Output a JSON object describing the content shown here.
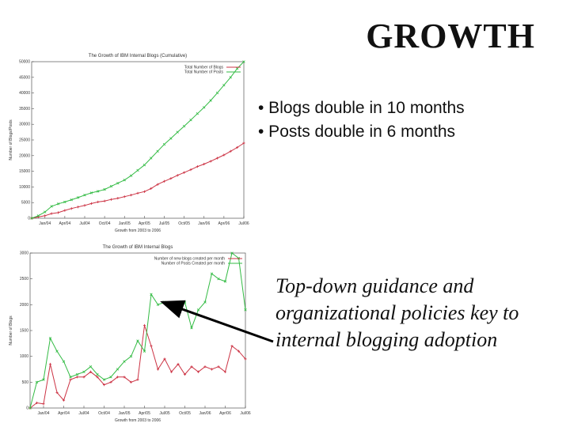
{
  "slide": {
    "title": "GROWTH",
    "bullets": [
      "• Blogs double in 10 months",
      "• Posts double in 6 months"
    ],
    "note": "Top-down guidance and organizational policies key to internal blogging adoption"
  },
  "colors": {
    "blogs": "#cc3344",
    "posts": "#33bb44",
    "arrow": "#000000"
  },
  "chart_data": [
    {
      "type": "line",
      "title": "The Growth of IBM Internal Blogs (Cumulative)",
      "xlabel": "Growth from 2003 to 2006",
      "ylabel": "Number of Blogs/Posts",
      "ylim": [
        0,
        50000
      ],
      "yticks": [
        0,
        5000,
        10000,
        15000,
        20000,
        25000,
        30000,
        35000,
        40000,
        45000,
        50000
      ],
      "xtick_labels": [
        "Jan/04",
        "Apr/04",
        "Jul/04",
        "Oct/04",
        "Jan/05",
        "Apr/05",
        "Jul/05",
        "Oct/05",
        "Jan/06",
        "Apr/06",
        "Jul/06"
      ],
      "legend_position": "top-right",
      "grid": false,
      "x": [
        "Nov/03",
        "Dec/03",
        "Jan/04",
        "Feb/04",
        "Mar/04",
        "Apr/04",
        "May/04",
        "Jun/04",
        "Jul/04",
        "Aug/04",
        "Sep/04",
        "Oct/04",
        "Nov/04",
        "Dec/04",
        "Jan/05",
        "Feb/05",
        "Mar/05",
        "Apr/05",
        "May/05",
        "Jun/05",
        "Jul/05",
        "Aug/05",
        "Sep/05",
        "Oct/05",
        "Nov/05",
        "Dec/05",
        "Jan/06",
        "Feb/06",
        "Mar/06",
        "Apr/06",
        "May/06",
        "Jun/06",
        "Jul/06"
      ],
      "series": [
        {
          "name": "Total Number of Blogs",
          "values": [
            0,
            400,
            800,
            1500,
            1800,
            2500,
            3100,
            3600,
            4100,
            4700,
            5200,
            5500,
            6000,
            6400,
            6900,
            7400,
            8000,
            8500,
            9500,
            10800,
            11800,
            12700,
            13700,
            14600,
            15500,
            16500,
            17300,
            18200,
            19200,
            20200,
            21400,
            22600,
            24000
          ]
        },
        {
          "name": "Total Number of Posts",
          "values": [
            0,
            800,
            2000,
            3800,
            4600,
            5200,
            5900,
            6600,
            7400,
            8100,
            8600,
            9200,
            10200,
            11200,
            12200,
            13600,
            15300,
            17000,
            19200,
            21400,
            23600,
            25500,
            27500,
            29400,
            31400,
            33400,
            35400,
            37600,
            40000,
            42500,
            45000,
            47800,
            50000
          ]
        }
      ]
    },
    {
      "type": "line",
      "title": "The Growth of IBM Internal Blogs",
      "xlabel": "Growth from 2003 to 2006",
      "ylabel": "Number of Blogs",
      "ylim": [
        0,
        3000
      ],
      "yticks": [
        0,
        500,
        1000,
        1500,
        2000,
        2500,
        3000
      ],
      "ytick_labels": [
        "0",
        "500",
        "1000",
        "1500",
        "2000",
        "2500",
        "3000"
      ],
      "xtick_labels": [
        "Jan/04",
        "Apr/04",
        "Jul/04",
        "Oct/04",
        "Jan/05",
        "Apr/05",
        "Jul/05",
        "Oct/05",
        "Jan/06",
        "Apr/06",
        "Jul/06"
      ],
      "legend_position": "top-right",
      "grid": false,
      "x": [
        "Nov/03",
        "Dec/03",
        "Jan/04",
        "Feb/04",
        "Mar/04",
        "Apr/04",
        "May/04",
        "Jun/04",
        "Jul/04",
        "Aug/04",
        "Sep/04",
        "Oct/04",
        "Nov/04",
        "Dec/04",
        "Jan/05",
        "Feb/05",
        "Mar/05",
        "Apr/05",
        "May/05",
        "Jun/05",
        "Jul/05",
        "Aug/05",
        "Sep/05",
        "Oct/05",
        "Nov/05",
        "Dec/05",
        "Jan/06",
        "Feb/06",
        "Mar/06",
        "Apr/06",
        "May/06",
        "Jun/06",
        "Jul/06"
      ],
      "series": [
        {
          "name": "Number of new blogs created per month",
          "values": [
            0,
            100,
            80,
            850,
            300,
            150,
            550,
            600,
            600,
            700,
            600,
            450,
            500,
            600,
            600,
            500,
            550,
            1600,
            1200,
            750,
            950,
            700,
            850,
            650,
            800,
            700,
            800,
            750,
            800,
            700,
            1200,
            1100,
            950
          ]
        },
        {
          "name": "Number of Posts Created per month",
          "values": [
            0,
            500,
            550,
            1350,
            1100,
            900,
            600,
            650,
            700,
            800,
            650,
            550,
            600,
            750,
            900,
            1000,
            1300,
            1100,
            2200,
            2000,
            2050,
            1950,
            1800,
            2050,
            1550,
            1900,
            2050,
            2600,
            2500,
            2450,
            3000,
            2900,
            1900
          ]
        }
      ]
    }
  ]
}
